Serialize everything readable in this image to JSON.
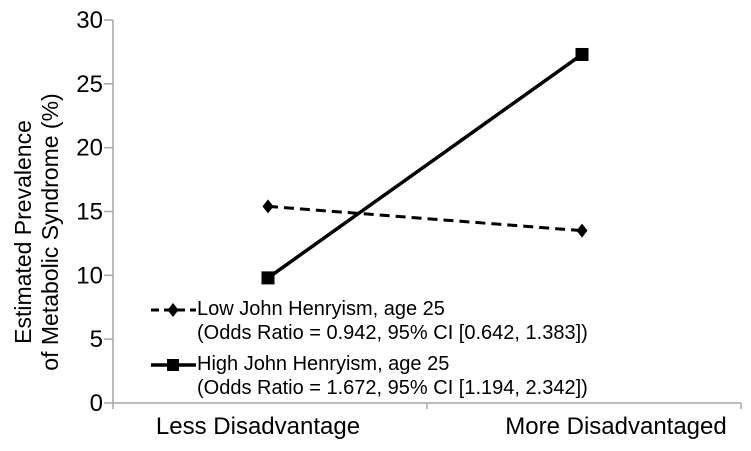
{
  "figure": {
    "background": "#ffffff",
    "text_color": "#000000",
    "axis_color": "#a6a6a6",
    "series_color": "#000000"
  },
  "chart_data": {
    "type": "line",
    "categories": [
      "Less Disadvantage",
      "More Disadvantaged"
    ],
    "series": [
      {
        "name": "Low John Henryism, age 25",
        "detail": "(Odds Ratio = 0.942, 95% CI [0.642, 1.383])",
        "values": [
          15.4,
          13.5
        ],
        "line_style": "dashed",
        "marker": "diamond",
        "color": "#000000"
      },
      {
        "name": "High John Henryism, age 25",
        "detail": "(Odds Ratio = 1.672, 95% CI [1.194, 2.342])",
        "values": [
          9.8,
          27.3
        ],
        "line_style": "solid",
        "marker": "square",
        "color": "#000000"
      }
    ],
    "ylabel_line1": "Estimated Prevalence",
    "ylabel_line2": "of Metabolic Syndrome (%)",
    "ylim": [
      0,
      30
    ],
    "yticks": [
      0,
      5,
      10,
      15,
      20,
      25,
      30
    ],
    "grid": false,
    "legend_position": "inside-lower-left"
  }
}
